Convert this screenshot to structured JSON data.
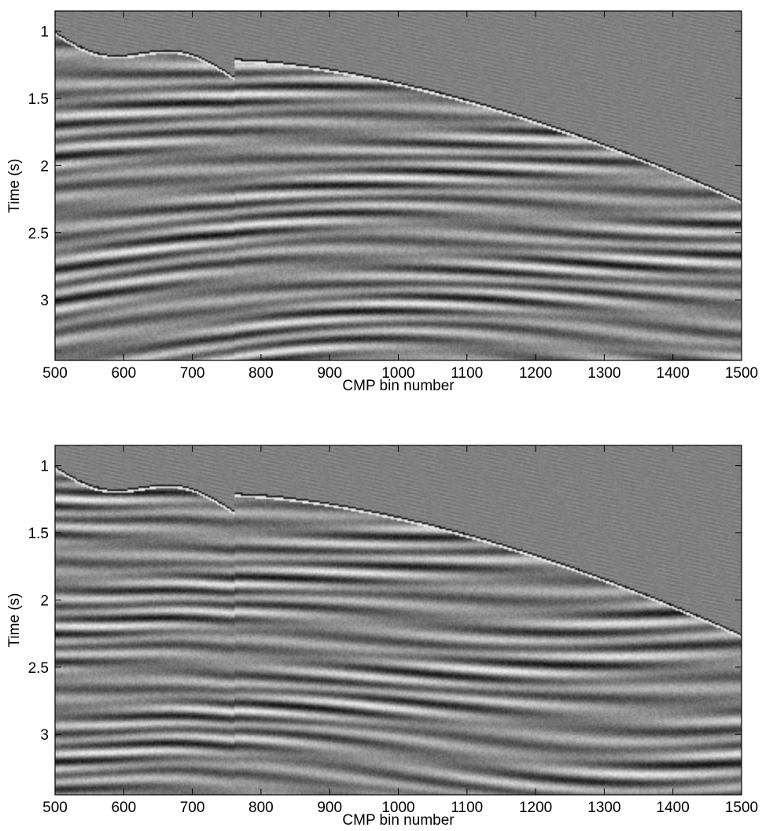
{
  "chart_data": [
    {
      "type": "heatmap",
      "description_colormap": "grayscale",
      "xlabel": "CMP bin number",
      "ylabel": "Time (s)",
      "xlim": [
        500,
        1500
      ],
      "ylim": [
        0.85,
        3.45
      ],
      "y_reversed": true,
      "xticks": [
        "500",
        "600",
        "700",
        "800",
        "900",
        "1000",
        "1100",
        "1200",
        "1300",
        "1400",
        "1500"
      ],
      "yticks": [
        "1",
        "1.5",
        "2",
        "2.5",
        "3"
      ],
      "xtick_values": [
        500,
        600,
        700,
        800,
        900,
        1000,
        1100,
        1200,
        1300,
        1400,
        1500
      ],
      "ytick_values": [
        1,
        1.5,
        2,
        2.5,
        3
      ],
      "seed": 7
    },
    {
      "type": "heatmap",
      "description_colormap": "grayscale",
      "xlabel": "CMP bin number",
      "ylabel": "Time (s)",
      "xlim": [
        500,
        1500
      ],
      "ylim": [
        0.85,
        3.45
      ],
      "y_reversed": true,
      "xticks": [
        "500",
        "600",
        "700",
        "800",
        "900",
        "1000",
        "1100",
        "1200",
        "1300",
        "1400",
        "1500"
      ],
      "yticks": [
        "1",
        "1.5",
        "2",
        "2.5",
        "3"
      ],
      "xtick_values": [
        500,
        600,
        700,
        800,
        900,
        1000,
        1100,
        1200,
        1300,
        1400,
        1500
      ],
      "ytick_values": [
        1,
        1.5,
        2,
        2.5,
        3
      ],
      "seed": 13
    }
  ]
}
